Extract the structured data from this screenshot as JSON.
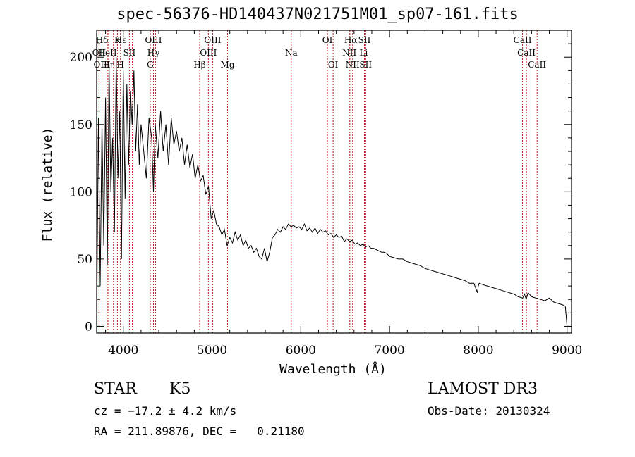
{
  "chart_data": {
    "type": "line",
    "title": "spec-56376-HD140437N021751M01_sp07-161.fits",
    "xlabel": "Wavelength (Å)",
    "ylabel": "Flux (relative)",
    "xlim": [
      3700,
      9050
    ],
    "ylim": [
      -5,
      220
    ],
    "x_ticks": [
      4000,
      5000,
      6000,
      7000,
      8000,
      9000
    ],
    "y_ticks": [
      0,
      50,
      100,
      150,
      200
    ],
    "series": [
      {
        "name": "flux",
        "x": [
          3700,
          3720,
          3740,
          3760,
          3780,
          3800,
          3820,
          3840,
          3860,
          3880,
          3900,
          3920,
          3940,
          3960,
          3980,
          4000,
          4020,
          4040,
          4060,
          4080,
          4100,
          4120,
          4140,
          4160,
          4180,
          4200,
          4230,
          4260,
          4290,
          4320,
          4340,
          4360,
          4390,
          4420,
          4450,
          4480,
          4510,
          4540,
          4570,
          4600,
          4630,
          4660,
          4690,
          4720,
          4750,
          4780,
          4810,
          4840,
          4870,
          4900,
          4930,
          4960,
          4990,
          5020,
          5050,
          5080,
          5110,
          5140,
          5170,
          5200,
          5230,
          5260,
          5290,
          5320,
          5350,
          5380,
          5410,
          5440,
          5470,
          5500,
          5530,
          5560,
          5590,
          5620,
          5650,
          5680,
          5710,
          5740,
          5770,
          5800,
          5830,
          5860,
          5890,
          5920,
          5950,
          5980,
          6010,
          6040,
          6070,
          6100,
          6130,
          6160,
          6190,
          6220,
          6250,
          6280,
          6310,
          6340,
          6370,
          6400,
          6430,
          6460,
          6490,
          6520,
          6550,
          6580,
          6610,
          6640,
          6670,
          6700,
          6730,
          6760,
          6790,
          6820,
          6850,
          6880,
          6910,
          6940,
          6970,
          7000,
          7050,
          7100,
          7150,
          7200,
          7250,
          7300,
          7350,
          7400,
          7450,
          7500,
          7550,
          7600,
          7650,
          7700,
          7750,
          7800,
          7850,
          7900,
          7950,
          7990,
          8000,
          8010,
          8050,
          8100,
          8150,
          8200,
          8250,
          8300,
          8350,
          8400,
          8450,
          8500,
          8520,
          8540,
          8560,
          8600,
          8650,
          8700,
          8750,
          8800,
          8850,
          8900,
          8950,
          8980,
          9000
        ],
        "values": [
          0,
          155,
          30,
          150,
          60,
          170,
          45,
          195,
          100,
          140,
          70,
          200,
          110,
          160,
          50,
          190,
          95,
          180,
          120,
          175,
          150,
          190,
          130,
          165,
          120,
          150,
          130,
          110,
          155,
          140,
          100,
          150,
          125,
          160,
          130,
          150,
          120,
          155,
          135,
          145,
          130,
          140,
          120,
          135,
          118,
          128,
          110,
          120,
          108,
          112,
          98,
          104,
          80,
          86,
          76,
          74,
          68,
          72,
          60,
          66,
          62,
          70,
          64,
          68,
          60,
          64,
          58,
          60,
          55,
          58,
          52,
          50,
          58,
          48,
          55,
          66,
          68,
          72,
          70,
          74,
          72,
          76,
          74,
          75,
          73,
          74,
          72,
          76,
          71,
          73,
          70,
          73,
          69,
          72,
          70,
          71,
          68,
          69,
          66,
          68,
          66,
          67,
          63,
          65,
          63,
          64,
          61,
          62,
          60,
          61,
          59,
          60,
          58,
          58,
          57,
          56,
          55,
          55,
          54,
          52,
          51,
          50,
          50,
          48,
          47,
          46,
          45,
          43,
          42,
          41,
          40,
          39,
          38,
          37,
          36,
          35,
          34,
          32,
          32,
          25,
          30,
          32,
          31,
          30,
          29,
          28,
          27,
          26,
          25,
          24,
          22,
          21,
          24,
          20,
          25,
          22,
          21,
          20,
          19,
          21,
          18,
          17,
          16,
          15,
          0
        ]
      }
    ],
    "line_labels": [
      {
        "row": 1,
        "text": "Hδ",
        "x": 3760
      },
      {
        "row": 1,
        "text": "K",
        "x": 3934
      },
      {
        "row": 1,
        "text": "Hε",
        "x": 3970
      },
      {
        "row": 1,
        "text": "OIII",
        "x": 4340
      },
      {
        "row": 1,
        "text": "OIII",
        "x": 5007
      },
      {
        "row": 1,
        "text": "OI",
        "x": 6300
      },
      {
        "row": 1,
        "text": "Hα",
        "x": 6563
      },
      {
        "row": 1,
        "text": "SII",
        "x": 6717
      },
      {
        "row": 1,
        "text": "CaII",
        "x": 8498
      },
      {
        "row": 2,
        "text": "OII",
        "x": 3727
      },
      {
        "row": 2,
        "text": "HeII",
        "x": 3820
      },
      {
        "row": 2,
        "text": "SII",
        "x": 4069
      },
      {
        "row": 2,
        "text": "Hγ",
        "x": 4340
      },
      {
        "row": 2,
        "text": "OIII",
        "x": 4959
      },
      {
        "row": 2,
        "text": "Na",
        "x": 5893
      },
      {
        "row": 2,
        "text": "NII",
        "x": 6548
      },
      {
        "row": 2,
        "text": "Li",
        "x": 6708
      },
      {
        "row": 2,
        "text": "CaII",
        "x": 8542
      },
      {
        "row": 3,
        "text": "OIII",
        "x": 3760
      },
      {
        "row": 3,
        "text": "Hη",
        "x": 3835
      },
      {
        "row": 3,
        "text": "H",
        "x": 3968
      },
      {
        "row": 3,
        "text": "G",
        "x": 4304
      },
      {
        "row": 3,
        "text": "Hβ",
        "x": 4861
      },
      {
        "row": 3,
        "text": "Mg",
        "x": 5175
      },
      {
        "row": 3,
        "text": "OI",
        "x": 6364
      },
      {
        "row": 3,
        "text": "NII",
        "x": 6584
      },
      {
        "row": 3,
        "text": "SII",
        "x": 6731
      },
      {
        "row": 3,
        "text": "CaII",
        "x": 8662
      }
    ],
    "line_markers": [
      3727,
      3760,
      3820,
      3835,
      3889,
      3934,
      3968,
      4069,
      4102,
      4304,
      4340,
      4363,
      4861,
      4959,
      5007,
      5175,
      5893,
      6300,
      6364,
      6548,
      6563,
      6584,
      6717,
      6731,
      8498,
      8542,
      8662
    ]
  },
  "info": {
    "object_class": "STAR",
    "subclass": "K5",
    "survey": "LAMOST DR3",
    "redshift": "cz = −17.2 ± 4.2 km/s",
    "obs_date": "Obs-Date: 20130324",
    "coords": "RA = 211.89876, DEC =   0.21180"
  },
  "colors": {
    "line_marker": "#b22222",
    "spectrum": "#000000"
  }
}
